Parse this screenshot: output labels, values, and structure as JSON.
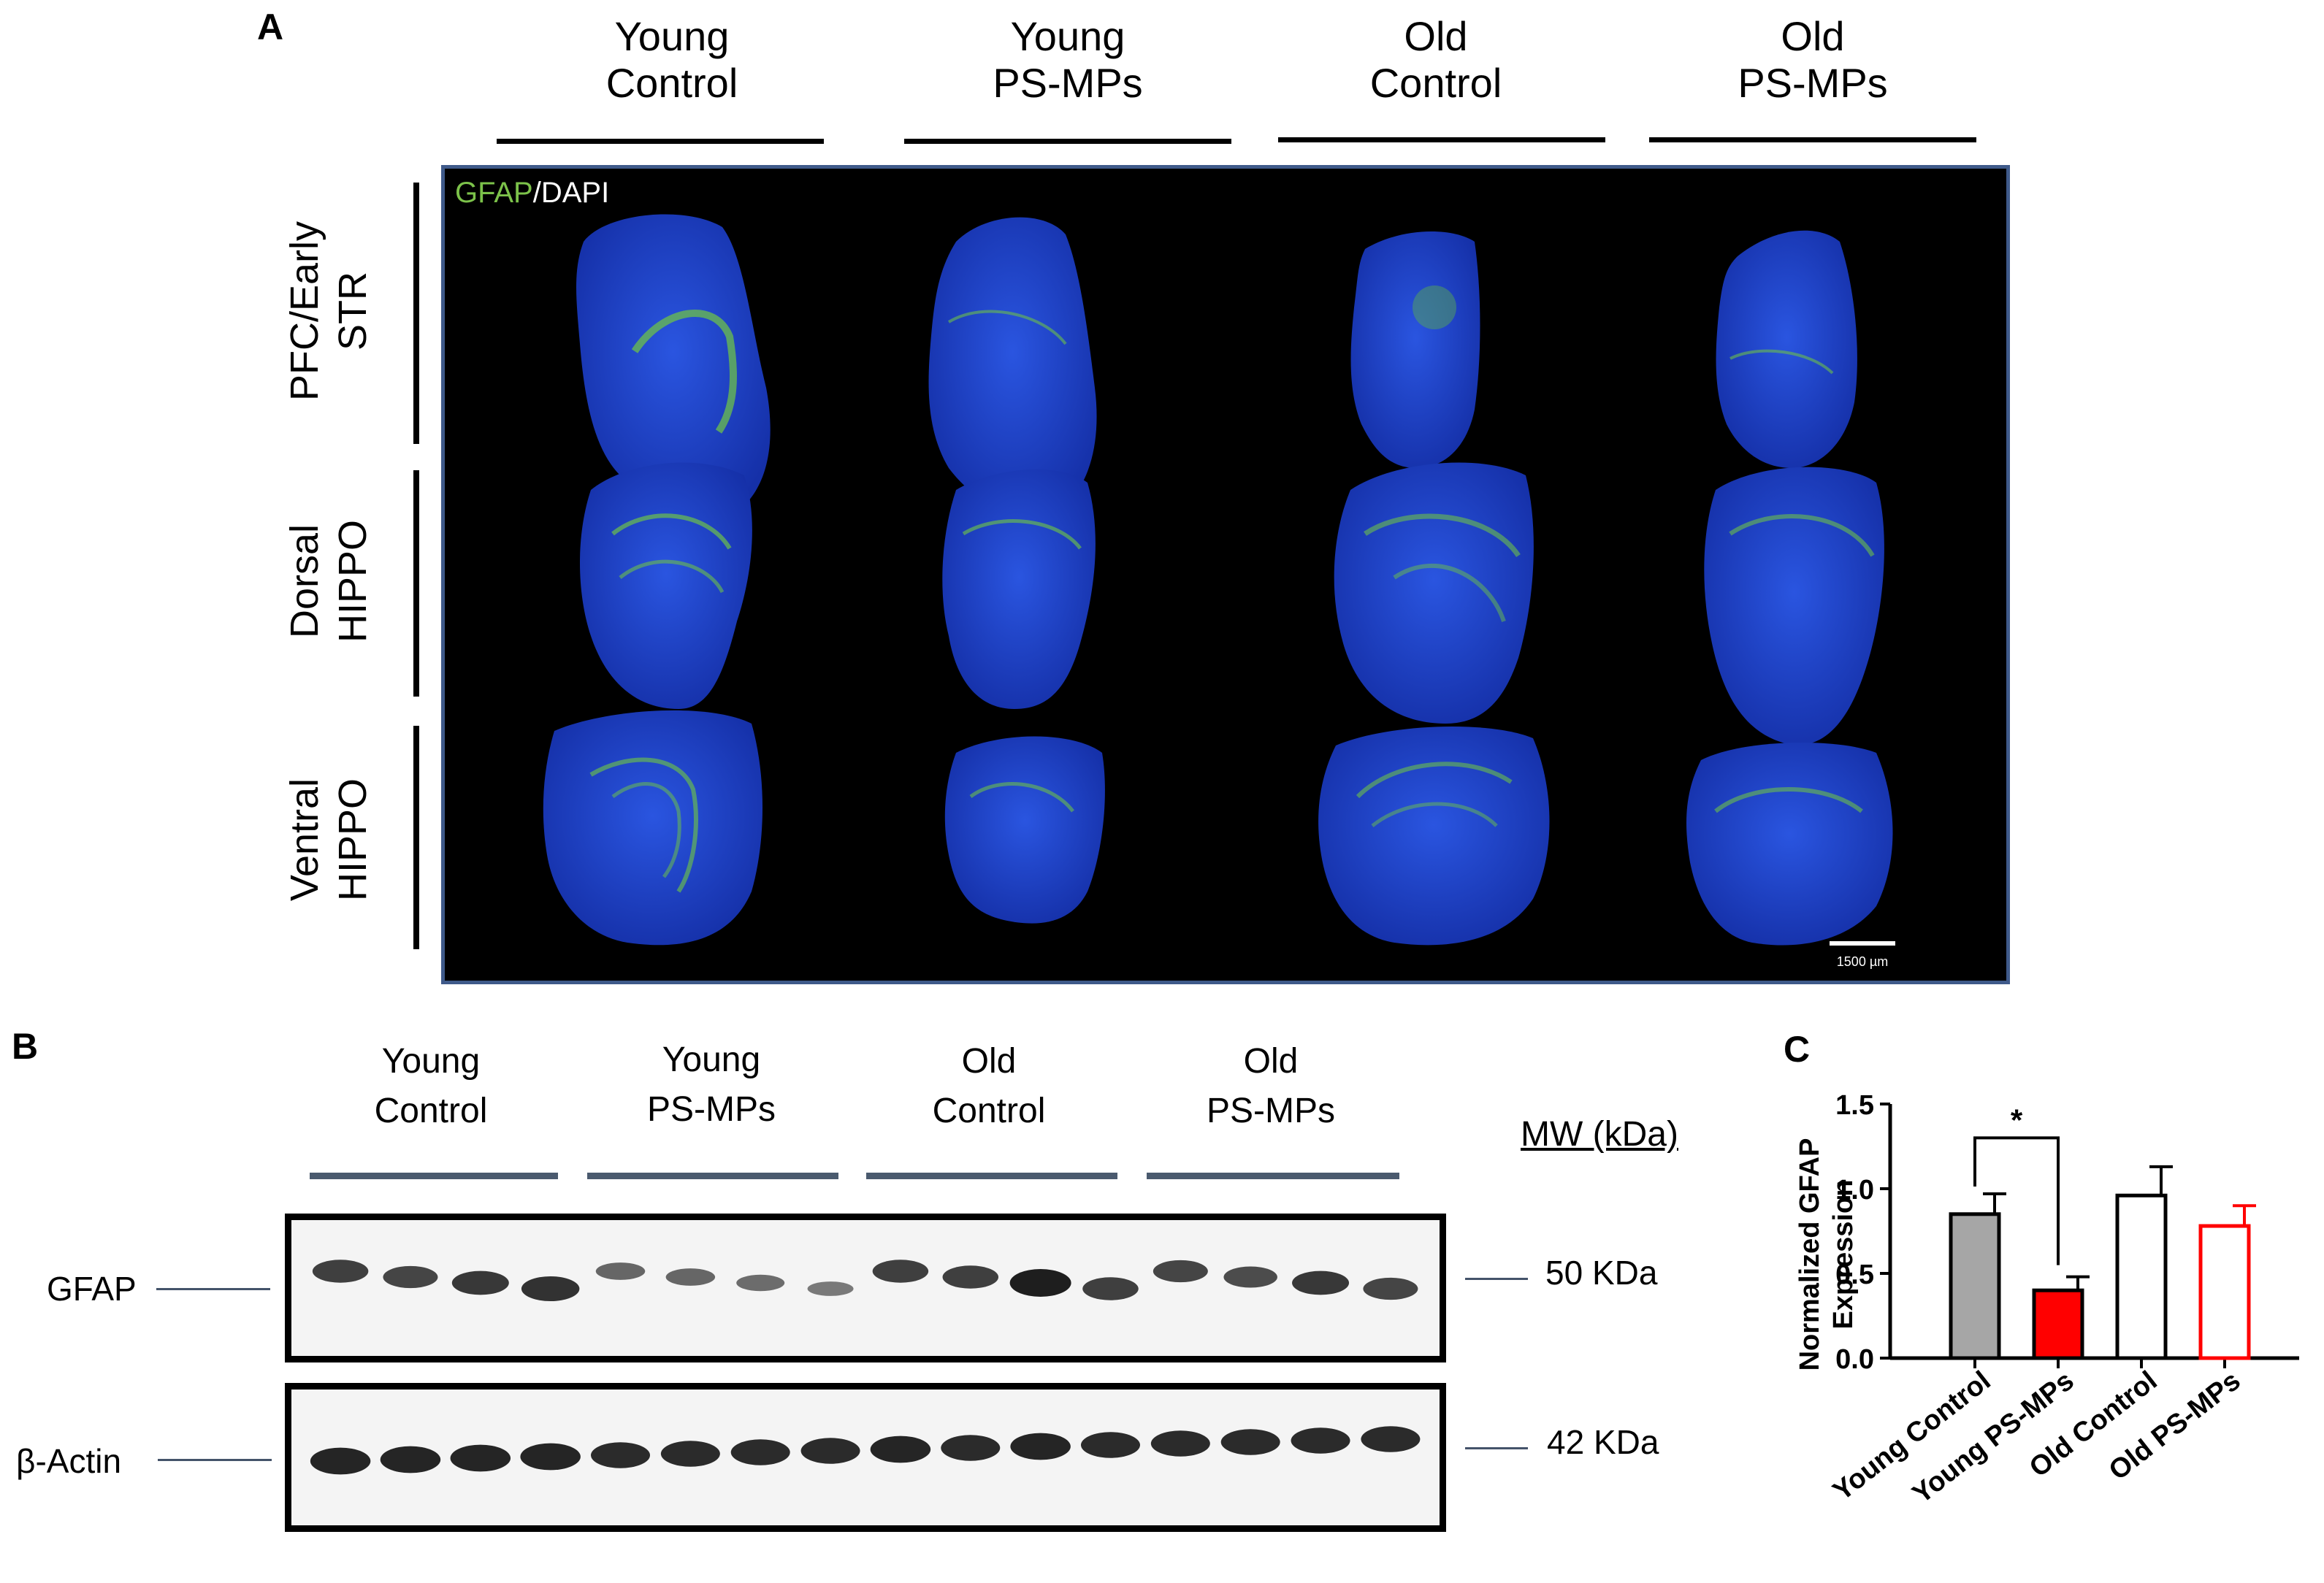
{
  "panel_a": {
    "label": "A",
    "groups": [
      {
        "line1": "Young",
        "line2": "Control"
      },
      {
        "line1": "Young",
        "line2": "PS-MPs"
      },
      {
        "line1": "Old",
        "line2": "Control"
      },
      {
        "line1": "Old",
        "line2": "PS-MPs"
      }
    ],
    "regions": [
      {
        "line1": "PFC/Early",
        "line2": "STR"
      },
      {
        "line1": "Dorsal",
        "line2": "HIPPO"
      },
      {
        "line1": "Ventral",
        "line2": "HIPPO"
      }
    ],
    "stain_label_gfap": "GFAP",
    "stain_label_dapi": "/DAPI",
    "scale_bar": "1500 µm",
    "colors": {
      "gfap": "#7cc24a",
      "dapi": "#1e3ec8",
      "border": "#3f5a8a"
    }
  },
  "panel_b": {
    "label": "B",
    "groups": [
      {
        "line1": "Young",
        "line2": "Control"
      },
      {
        "line1": "Young",
        "line2": "PS-MPs"
      },
      {
        "line1": "Old",
        "line2": "Control"
      },
      {
        "line1": "Old",
        "line2": "PS-MPs"
      }
    ],
    "mw_header": "MW (kDa)",
    "blots": [
      {
        "protein": "GFAP",
        "mw": "50 KDa",
        "band_intensity": [
          0.75,
          0.7,
          0.8,
          0.85,
          0.45,
          0.45,
          0.4,
          0.3,
          0.75,
          0.75,
          1.0,
          0.75,
          0.7,
          0.65,
          0.8,
          0.7
        ]
      },
      {
        "protein": "β-Actin",
        "mw": "42 KDa",
        "band_intensity": [
          0.95,
          0.95,
          0.95,
          0.95,
          0.9,
          0.9,
          0.9,
          0.9,
          0.95,
          0.9,
          0.95,
          0.9,
          0.9,
          0.9,
          0.9,
          0.9
        ]
      }
    ]
  },
  "panel_c": {
    "label": "C",
    "significance": "*",
    "colors": {
      "young_control": "#a6a6a6",
      "young_psmps": "#ff0000",
      "old_control": "#ffffff",
      "old_psmps_edge": "#ff0000"
    }
  },
  "chart_data": {
    "type": "bar",
    "title": "",
    "xlabel": "",
    "ylabel": "Normalized GFAP Expression",
    "ylabel_lines": [
      "Normalized GFAP",
      "Expression"
    ],
    "categories": [
      "Young Control",
      "Young PS-MPs",
      "Old Control",
      "Old PS-MPs"
    ],
    "values": [
      0.85,
      0.4,
      0.96,
      0.78
    ],
    "errors": [
      0.12,
      0.08,
      0.17,
      0.12
    ],
    "ylim": [
      0.0,
      1.5
    ],
    "yticks": [
      "0.0",
      "0.5",
      "1.0",
      "1.5"
    ],
    "annotation": {
      "from": "Young Control",
      "to": "Young PS-MPs",
      "text": "*"
    }
  }
}
